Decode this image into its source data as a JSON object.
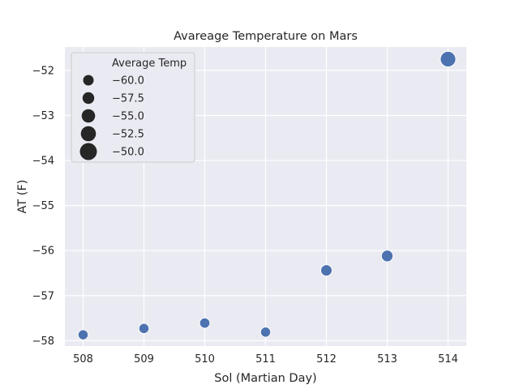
{
  "chart_data": {
    "type": "scatter",
    "title": "Avareage Temperature on Mars",
    "xlabel": "Sol (Martian Day)",
    "ylabel": "AT (F)",
    "xlim": [
      507.7,
      514.3
    ],
    "ylim": [
      -58.12,
      -51.48
    ],
    "xticks": [
      508,
      509,
      510,
      511,
      512,
      513,
      514
    ],
    "yticks": [
      -58,
      -57,
      -56,
      -55,
      -54,
      -53,
      -52
    ],
    "xtick_labels": [
      "508",
      "509",
      "510",
      "511",
      "512",
      "513",
      "514"
    ],
    "ytick_labels": [
      "−58",
      "−57",
      "−56",
      "−55",
      "−54",
      "−53",
      "−52"
    ],
    "grid": true,
    "point_color": "#4c72b0",
    "background_color": "#eaeaf2",
    "points": [
      {
        "x": 508,
        "y": -57.87
      },
      {
        "x": 509,
        "y": -57.73
      },
      {
        "x": 510,
        "y": -57.61
      },
      {
        "x": 511,
        "y": -57.81
      },
      {
        "x": 512,
        "y": -56.44
      },
      {
        "x": 513,
        "y": -56.12
      },
      {
        "x": 514,
        "y": -51.75
      }
    ],
    "legend": {
      "title": "Average Temp",
      "placement": "upper-left",
      "entries": [
        {
          "label": "−60.0",
          "value": -60.0
        },
        {
          "label": "−57.5",
          "value": -57.5
        },
        {
          "label": "−55.0",
          "value": -55.0
        },
        {
          "label": "−52.5",
          "value": -52.5
        },
        {
          "label": "−50.0",
          "value": -50.0
        }
      ]
    }
  }
}
